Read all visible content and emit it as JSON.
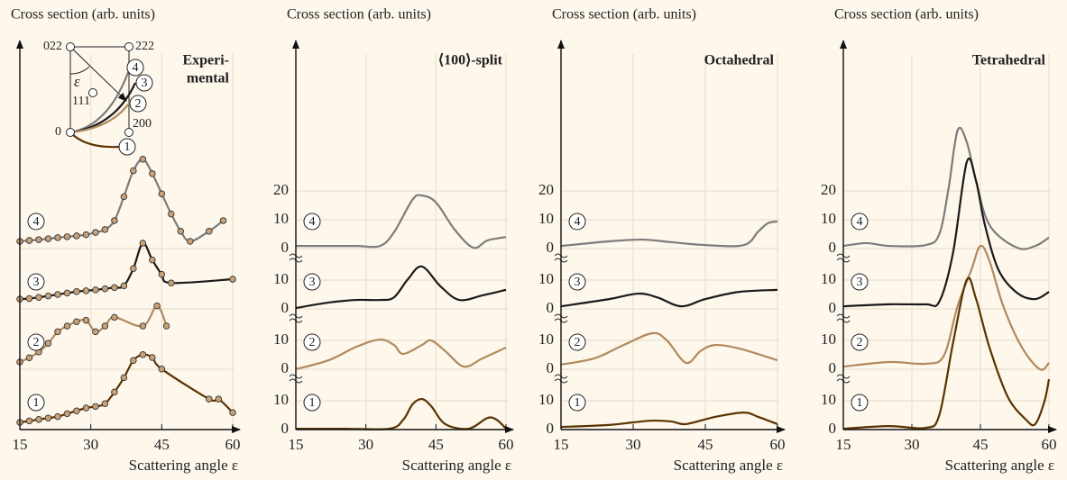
{
  "chart_data": [
    {
      "type": "line",
      "title": "Cross section (arb. units)",
      "label": [
        "Experi-",
        "mental"
      ],
      "xlabel": "Scattering angle ε",
      "xlim": [
        15,
        60
      ],
      "xticks": [
        15,
        30,
        45,
        60
      ],
      "inset": {
        "labels": [
          "022",
          "222",
          "0",
          "200",
          "111",
          "ε"
        ],
        "curves": [
          "4",
          "3",
          "2",
          "1"
        ]
      },
      "curves": [
        {
          "name": "4",
          "color": "#7c7c7c",
          "markers": true,
          "x": [
            15,
            17,
            19,
            21,
            23,
            25,
            27,
            29,
            31,
            33,
            35,
            37,
            39,
            41,
            43,
            45,
            47,
            49,
            51,
            55,
            58
          ],
          "values": [
            2.5,
            2.8,
            3.1,
            3.4,
            3.8,
            4.1,
            4.4,
            4.8,
            5.6,
            6.6,
            9.7,
            18,
            27,
            31,
            26,
            19,
            12,
            6,
            2.5,
            6,
            9.7
          ]
        },
        {
          "name": "3",
          "color": "#1a1a1a",
          "markers": true,
          "x": [
            15,
            17,
            19,
            21,
            23,
            25,
            27,
            29,
            31,
            33,
            35,
            37,
            39,
            41,
            43,
            45,
            47,
            60
          ],
          "values": [
            3.4,
            3.6,
            4,
            4.5,
            5,
            5.5,
            6,
            6.3,
            6.6,
            7,
            7.4,
            8,
            14,
            22.8,
            17,
            12,
            9,
            10.3
          ]
        },
        {
          "name": "2",
          "color": "#b08a5e",
          "markers": true,
          "x": [
            15,
            17,
            19,
            21,
            23,
            25,
            27,
            29,
            31,
            33,
            35,
            41,
            44,
            46
          ],
          "values": [
            2.5,
            4,
            6,
            9,
            13,
            15,
            16.5,
            17,
            13,
            15,
            18,
            15,
            22,
            15
          ]
        },
        {
          "name": "1",
          "color": "#5a3300",
          "markers": true,
          "x": [
            15,
            17,
            19,
            21,
            23,
            25,
            27,
            29,
            31,
            33,
            35,
            37,
            39,
            41,
            43,
            45,
            55,
            57,
            60
          ],
          "values": [
            2.5,
            3,
            3.5,
            4,
            4.5,
            5.5,
            6.5,
            7.5,
            8,
            9,
            13,
            18,
            24,
            26,
            25,
            21,
            10.6,
            10.6,
            5.9
          ]
        }
      ]
    },
    {
      "type": "line",
      "title": "Cross section (arb. units)",
      "label": [
        "⟨100⟩-split"
      ],
      "xlabel": "Scattering angle ε",
      "xlim": [
        15,
        60
      ],
      "xticks": [
        15,
        30,
        45,
        60
      ],
      "curves": [
        {
          "name": "4",
          "color": "#7c7c7c",
          "yticks": [
            0,
            10,
            20
          ],
          "x": [
            15,
            22,
            28,
            33,
            36,
            40,
            42,
            45,
            49,
            53,
            56,
            60
          ],
          "values": [
            0.9,
            0.9,
            0.9,
            0.9,
            5.6,
            17,
            18.4,
            16,
            6.6,
            0.3,
            2.8,
            4
          ]
        },
        {
          "name": "3",
          "color": "#1a1a1a",
          "yticks": [
            0,
            10
          ],
          "x": [
            15,
            22,
            28,
            33,
            36,
            39,
            42,
            46,
            50,
            55,
            60
          ],
          "values": [
            0.3,
            2.2,
            3.1,
            3.1,
            4,
            10.3,
            14.7,
            7.8,
            3.1,
            4.7,
            6.6
          ]
        },
        {
          "name": "2",
          "color": "#b08a5e",
          "yticks": [
            0,
            10
          ],
          "x": [
            15,
            22,
            28,
            33,
            36,
            38,
            42,
            44,
            47,
            51,
            55,
            60
          ],
          "values": [
            0,
            3.1,
            7.8,
            10.3,
            8.4,
            5.3,
            8.4,
            10,
            6.3,
            0.9,
            3.8,
            7.5
          ]
        },
        {
          "name": "1",
          "color": "#5a3300",
          "yticks": [
            0,
            10
          ],
          "x": [
            15,
            25,
            35,
            38,
            40,
            42,
            44,
            47,
            52,
            56,
            58,
            60
          ],
          "values": [
            0.3,
            0.3,
            0.3,
            3.4,
            8.8,
            10.6,
            8.1,
            1.9,
            0.3,
            4,
            3.4,
            0.3
          ]
        }
      ]
    },
    {
      "type": "line",
      "title": "Cross section (arb. units)",
      "label": [
        "Octahedral"
      ],
      "xlabel": "Scattering angle ε",
      "xlim": [
        15,
        60
      ],
      "xticks": [
        15,
        30,
        45,
        60
      ],
      "curves": [
        {
          "name": "4",
          "color": "#7c7c7c",
          "yticks": [
            0,
            10,
            20
          ],
          "x": [
            15,
            25,
            32,
            38,
            45,
            53,
            56,
            58,
            60
          ],
          "values": [
            0.9,
            2.5,
            3.1,
            2.2,
            1.2,
            1.2,
            5.9,
            8.8,
            9.4
          ]
        },
        {
          "name": "3",
          "color": "#1a1a1a",
          "yticks": [
            0,
            10
          ],
          "x": [
            15,
            25,
            31,
            35,
            40,
            45,
            52,
            60
          ],
          "values": [
            0.9,
            3.4,
            5.3,
            4,
            0.9,
            3.4,
            5.9,
            6.6
          ]
        },
        {
          "name": "2",
          "color": "#b08a5e",
          "yticks": [
            0,
            10
          ],
          "x": [
            15,
            22,
            28,
            34,
            37,
            41,
            44,
            47,
            52,
            60
          ],
          "values": [
            1.6,
            3.8,
            8.4,
            12.5,
            10,
            2.2,
            6.3,
            8.4,
            7.2,
            3.1
          ]
        },
        {
          "name": "1",
          "color": "#5a3300",
          "yticks": [
            0,
            10
          ],
          "x": [
            15,
            25,
            30,
            34,
            38,
            41,
            47,
            53,
            56,
            60
          ],
          "values": [
            0.9,
            1.6,
            2.5,
            3.1,
            2.8,
            1.9,
            4.4,
            5.9,
            4.4,
            1.9
          ]
        }
      ]
    },
    {
      "type": "line",
      "title": "Cross section (arb. units)",
      "label": [
        "Tetrahedral"
      ],
      "xlabel": "Scattering angle ε",
      "xlim": [
        15,
        60
      ],
      "xticks": [
        15,
        30,
        45,
        60
      ],
      "curves": [
        {
          "name": "4",
          "color": "#7c7c7c",
          "yticks": [
            0,
            10,
            20
          ],
          "x": [
            15,
            20,
            25,
            33,
            36,
            38,
            40,
            42,
            44,
            47,
            53,
            57,
            60
          ],
          "values": [
            0.9,
            1.9,
            0.9,
            1.2,
            5,
            20.6,
            41,
            37,
            23.8,
            8.1,
            0.3,
            0.9,
            3.8
          ]
        },
        {
          "name": "3",
          "color": "#1a1a1a",
          "yticks": [
            0,
            10
          ],
          "x": [
            15,
            25,
            33,
            36,
            39,
            42,
            44,
            46,
            49,
            53,
            57,
            60
          ],
          "values": [
            0.9,
            1.6,
            1.6,
            2.5,
            19.4,
            50.9,
            44.7,
            29,
            13.4,
            5.6,
            3.4,
            5.9
          ]
        },
        {
          "name": "2",
          "color": "#b08a5e",
          "yticks": [
            0,
            10
          ],
          "x": [
            15,
            25,
            33,
            37,
            40,
            43,
            45,
            47,
            50,
            54,
            58,
            60
          ],
          "values": [
            0.9,
            2.5,
            1.9,
            4.7,
            21.9,
            34.4,
            42.8,
            37.5,
            21.9,
            7.8,
            0,
            2.2
          ]
        },
        {
          "name": "1",
          "color": "#5a3300",
          "yticks": [
            0,
            10
          ],
          "x": [
            15,
            25,
            33,
            36,
            39,
            42,
            44,
            47,
            51,
            55,
            57,
            59,
            60
          ],
          "values": [
            0.3,
            1.2,
            0.6,
            5,
            30,
            51.9,
            45.6,
            28.4,
            11.3,
            3.4,
            1.9,
            9.7,
            17.5
          ]
        }
      ]
    }
  ]
}
